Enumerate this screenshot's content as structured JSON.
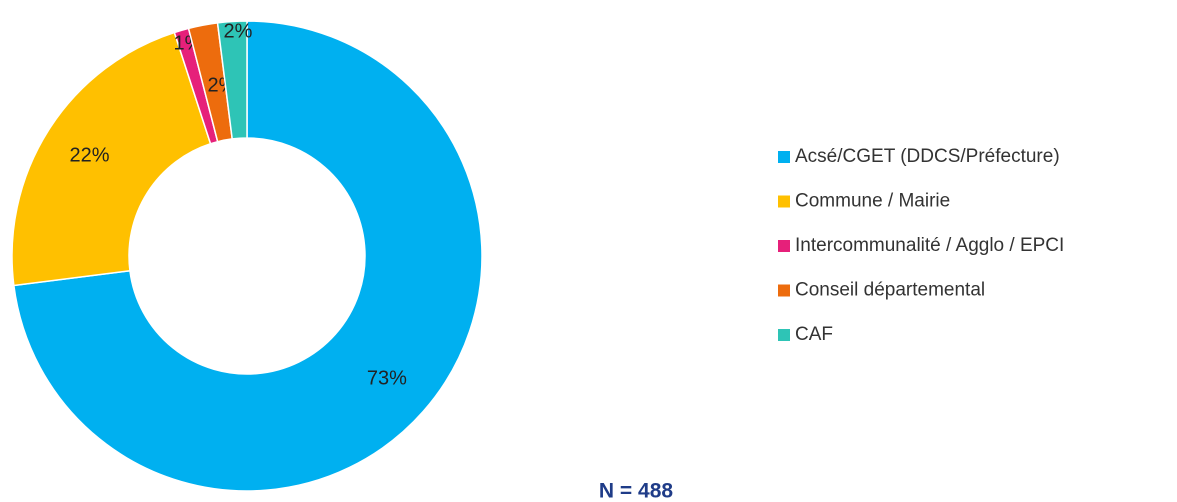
{
  "chart_data": {
    "type": "donut",
    "categories": [
      "Acsé/CGET (DDCS/Préfecture)",
      "Commune / Mairie",
      "Intercommunalité / Agglo / EPCI",
      "Conseil départemental",
      "CAF"
    ],
    "values": [
      73,
      22,
      1,
      2,
      2
    ],
    "value_labels": [
      "73%",
      "22%",
      "1%",
      "2%",
      "2%"
    ],
    "colors": [
      "#00b0f0",
      "#ffc000",
      "#e6207a",
      "#ed6c0d",
      "#2ec4b6"
    ],
    "annotation": "N = 488",
    "legend": "right"
  }
}
